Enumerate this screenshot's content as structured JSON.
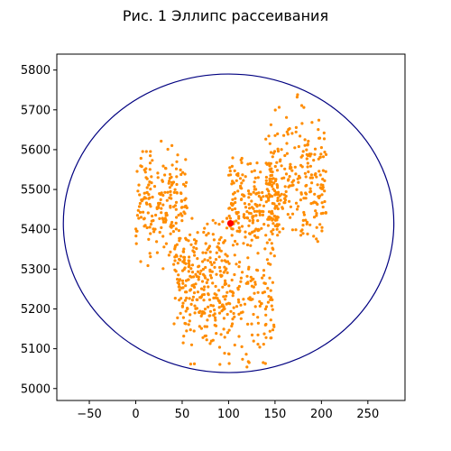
{
  "chart_data": {
    "type": "scatter",
    "title": "Рис. 1 Эллипс рассеивания",
    "xlabel": "",
    "ylabel": "",
    "xlim": [
      -85,
      290
    ],
    "ylim": [
      4970,
      5840
    ],
    "xticks": [
      -50,
      0,
      50,
      100,
      150,
      200,
      250
    ],
    "yticks": [
      5000,
      5100,
      5200,
      5300,
      5400,
      5500,
      5600,
      5700,
      5800
    ],
    "xtick_labels": [
      "−50",
      "0",
      "50",
      "100",
      "150",
      "200",
      "250"
    ],
    "ytick_labels": [
      "5000",
      "5100",
      "5200",
      "5300",
      "5400",
      "5500",
      "5600",
      "5700",
      "5800"
    ],
    "grid": false,
    "point_color": "#ff8c00",
    "center_color": "#ff0000",
    "ellipse_color": "#000080",
    "center": {
      "x": 102,
      "y": 5415
    },
    "ellipse": {
      "cx": 100,
      "cy": 5415,
      "rx": 178,
      "ry": 375
    },
    "clusters": [
      {
        "x_range": [
          0,
          55
        ],
        "y_range": [
          5270,
          5660
        ],
        "count": 200
      },
      {
        "x_range": [
          40,
          100
        ],
        "y_range": [
          5100,
          5500
        ],
        "count": 150
      },
      {
        "x_range": [
          45,
          150
        ],
        "y_range": [
          5000,
          5450
        ],
        "count": 280
      },
      {
        "x_range": [
          100,
          155
        ],
        "y_range": [
          5300,
          5620
        ],
        "count": 200
      },
      {
        "x_range": [
          140,
          205
        ],
        "y_range": [
          5280,
          5770
        ],
        "count": 260
      }
    ]
  }
}
